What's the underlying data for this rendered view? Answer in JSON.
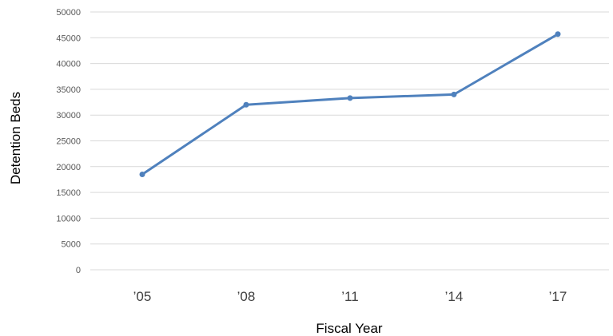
{
  "chart_data": {
    "type": "line",
    "categories": [
      "’05",
      "’08",
      "’11",
      "’14",
      "’17"
    ],
    "series": [
      {
        "values": [
          18500,
          32000,
          33300,
          34000,
          45700
        ]
      }
    ],
    "xlabel": "Fiscal Year",
    "ylabel": "Detention Beds",
    "ylim": [
      0,
      50000
    ],
    "yticks": [
      0,
      5000,
      10000,
      15000,
      20000,
      25000,
      30000,
      35000,
      40000,
      45000,
      50000
    ],
    "grid": "horizontal",
    "line_color": "#4f81bd"
  }
}
